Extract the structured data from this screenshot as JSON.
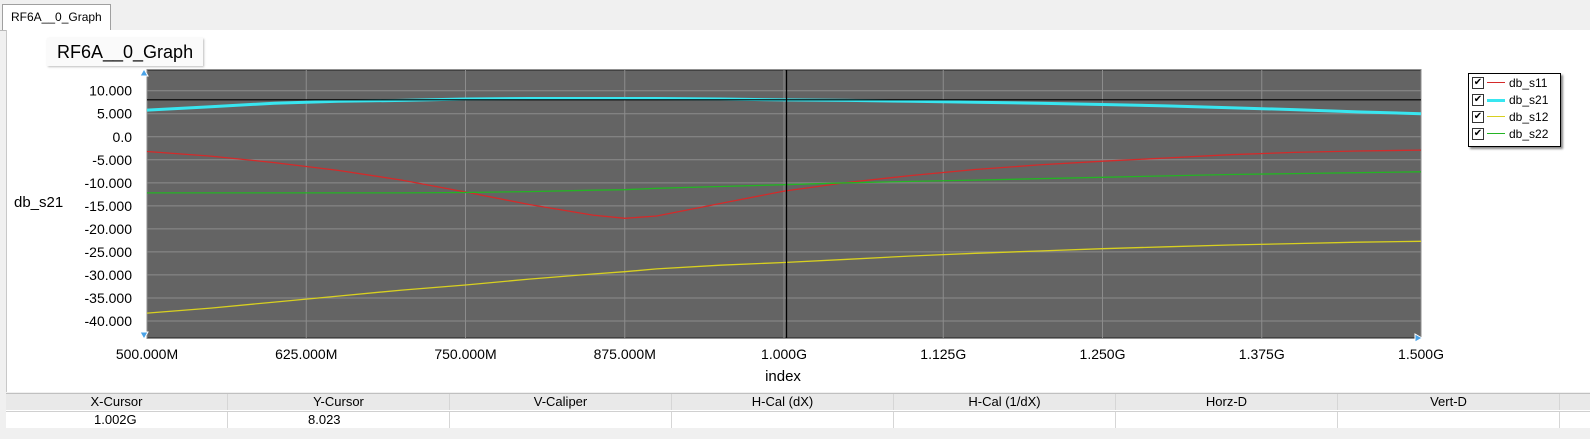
{
  "tab": {
    "label": "RF6A__0_Graph"
  },
  "cursor_table": {
    "headers": [
      "X-Cursor",
      "Y-Cursor",
      "V-Caliper",
      "H-Cal (dX)",
      "H-Cal (1/dX)",
      "Horz-D",
      "Vert-D"
    ],
    "values": [
      "1.002G",
      "8.023",
      "",
      "",
      "",
      "",
      ""
    ]
  },
  "colors": {
    "plot_bg": "#646464",
    "grid": "#8c8c8c",
    "cursor": "#000000",
    "db_s11": "#d42a2a",
    "db_s21": "#38e6f0",
    "db_s12": "#d8d020",
    "db_s22": "#24b424"
  },
  "chart_data": {
    "type": "line",
    "title": "RF6A__0_Graph",
    "xlabel": "index",
    "ylabel": "db_s21",
    "xlim": [
      500,
      1500
    ],
    "ylim": [
      -43.7,
      14.5
    ],
    "x_ticks": [
      500,
      625,
      750,
      875,
      1000,
      1125,
      1250,
      1375,
      1500
    ],
    "x_tick_labels": [
      "500.000M",
      "625.000M",
      "750.000M",
      "875.000M",
      "1.000G",
      "1.125G",
      "1.250G",
      "1.375G",
      "1.500G"
    ],
    "y_ticks": [
      10,
      5,
      0,
      -5,
      -10,
      -15,
      -20,
      -25,
      -30,
      -35,
      -40
    ],
    "y_tick_labels": [
      "10.000",
      "5.000",
      "0.0",
      "-5.000",
      "-10.000",
      "-15.000",
      "-20.000",
      "-25.000",
      "-30.000",
      "-35.000",
      "-40.000"
    ],
    "grid": true,
    "legend_position": "top-right",
    "cursor": {
      "x": 1002,
      "y": 8.023
    },
    "x": [
      500,
      550,
      600,
      650,
      700,
      750,
      800,
      850,
      875,
      900,
      950,
      1000,
      1050,
      1100,
      1150,
      1200,
      1250,
      1300,
      1350,
      1400,
      1450,
      1500
    ],
    "series": [
      {
        "name": "db_s11",
        "values": [
          -3.2,
          -4.2,
          -5.6,
          -7.3,
          -9.4,
          -12.0,
          -14.7,
          -17.0,
          -17.7,
          -17.2,
          -14.5,
          -11.8,
          -9.9,
          -8.4,
          -7.1,
          -6.1,
          -5.3,
          -4.6,
          -3.9,
          -3.4,
          -3.1,
          -2.9
        ]
      },
      {
        "name": "db_s21",
        "values": [
          5.8,
          6.5,
          7.3,
          7.7,
          7.9,
          8.2,
          8.3,
          8.3,
          8.3,
          8.3,
          8.2,
          8.0,
          7.9,
          7.7,
          7.5,
          7.3,
          7.0,
          6.7,
          6.3,
          5.9,
          5.4,
          5.0
        ]
      },
      {
        "name": "db_s12",
        "values": [
          -38.3,
          -37.2,
          -35.9,
          -34.6,
          -33.3,
          -32.2,
          -30.9,
          -29.8,
          -29.3,
          -28.7,
          -27.9,
          -27.3,
          -26.6,
          -25.9,
          -25.3,
          -24.8,
          -24.3,
          -23.9,
          -23.5,
          -23.2,
          -22.9,
          -22.7
        ]
      },
      {
        "name": "db_s22",
        "values": [
          -12.2,
          -12.2,
          -12.2,
          -12.2,
          -12.2,
          -12.1,
          -11.9,
          -11.6,
          -11.5,
          -11.2,
          -10.8,
          -10.4,
          -10.0,
          -9.7,
          -9.4,
          -9.1,
          -8.8,
          -8.5,
          -8.2,
          -8.0,
          -7.8,
          -7.6
        ]
      }
    ]
  }
}
